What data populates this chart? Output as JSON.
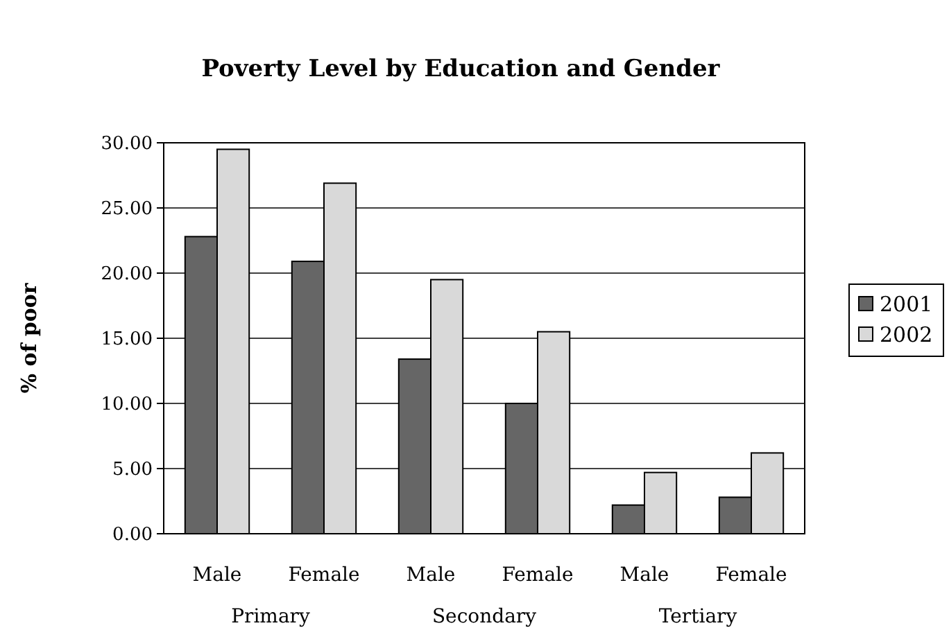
{
  "chart_data": {
    "type": "bar",
    "title": "Poverty Level by Education and Gender",
    "ylabel": "% of poor",
    "categories": [
      "Male",
      "Female",
      "Male",
      "Female",
      "Male",
      "Female"
    ],
    "series": [
      {
        "name": "2001",
        "color": "#666666",
        "values": [
          22.8,
          20.9,
          13.4,
          10.0,
          2.2,
          2.8
        ]
      },
      {
        "name": "2002",
        "color": "#d9d9d9",
        "values": [
          29.5,
          26.9,
          19.5,
          15.5,
          4.7,
          6.2
        ]
      }
    ],
    "annotations": [
      "Primary",
      "Secondary",
      "Tertiary"
    ],
    "ylim": [
      0,
      30
    ],
    "yticks": [
      {
        "value": 0,
        "label": "0.00"
      },
      {
        "value": 5,
        "label": "5.00"
      },
      {
        "value": 10,
        "label": "10.00"
      },
      {
        "value": 15,
        "label": "15.00"
      },
      {
        "value": 20,
        "label": "20.00"
      },
      {
        "value": 25,
        "label": "25.00"
      },
      {
        "value": 30,
        "label": "30.00"
      }
    ],
    "grid": "y",
    "legend": "right"
  }
}
